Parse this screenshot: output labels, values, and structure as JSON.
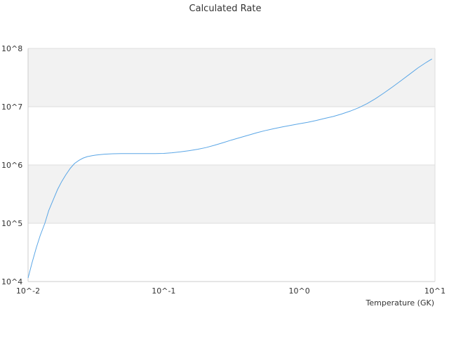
{
  "chart_data": {
    "type": "line",
    "title": "Calculated Rate",
    "xlabel": "Temperature (GK)",
    "ylabel": "",
    "x_scale": "log",
    "y_scale": "log",
    "xlim": [
      0.01,
      10
    ],
    "ylim": [
      10000,
      100000000
    ],
    "x_tick_labels": [
      "10^-2",
      "10^-1",
      "10^0",
      "10^1"
    ],
    "y_tick_labels": [
      "10^4",
      "10^5",
      "10^6",
      "10^7",
      "10^8"
    ],
    "grid": "alternating horizontal bands",
    "legend": "none",
    "series": [
      {
        "color": "#5aa6e6",
        "x": [
          0.01,
          0.0107,
          0.0115,
          0.0123,
          0.0133,
          0.0142,
          0.0153,
          0.0165,
          0.0177,
          0.019,
          0.0205,
          0.022,
          0.0237,
          0.0254,
          0.0273,
          0.0294,
          0.0316,
          0.0365,
          0.0422,
          0.0487,
          0.0562,
          0.065,
          0.075,
          0.0866,
          0.1,
          0.115,
          0.133,
          0.154,
          0.178,
          0.205,
          0.237,
          0.274,
          0.316,
          0.365,
          0.422,
          0.487,
          0.562,
          0.649,
          0.75,
          0.866,
          1.0,
          1.15,
          1.33,
          1.54,
          1.78,
          2.05,
          2.37,
          2.74,
          3.16,
          3.65,
          4.22,
          4.87,
          5.62,
          6.49,
          7.5,
          8.66,
          9.5
        ],
        "y": [
          11500,
          21000,
          38000,
          62000,
          100000,
          165000,
          250000,
          380000,
          520000,
          680000,
          880000,
          1060000,
          1200000,
          1310000,
          1390000,
          1440000,
          1480000,
          1530000,
          1560000,
          1570000,
          1570000,
          1570000,
          1570000,
          1570000,
          1580000,
          1620000,
          1680000,
          1760000,
          1860000,
          1990000,
          2180000,
          2410000,
          2680000,
          2950000,
          3250000,
          3580000,
          3900000,
          4200000,
          4500000,
          4800000,
          5100000,
          5400000,
          5800000,
          6300000,
          6800000,
          7500000,
          8400000,
          9600000,
          11300000,
          13800000,
          17300000,
          21900000,
          28000000,
          36000000,
          46500000,
          58000000,
          66000000
        ]
      }
    ]
  }
}
